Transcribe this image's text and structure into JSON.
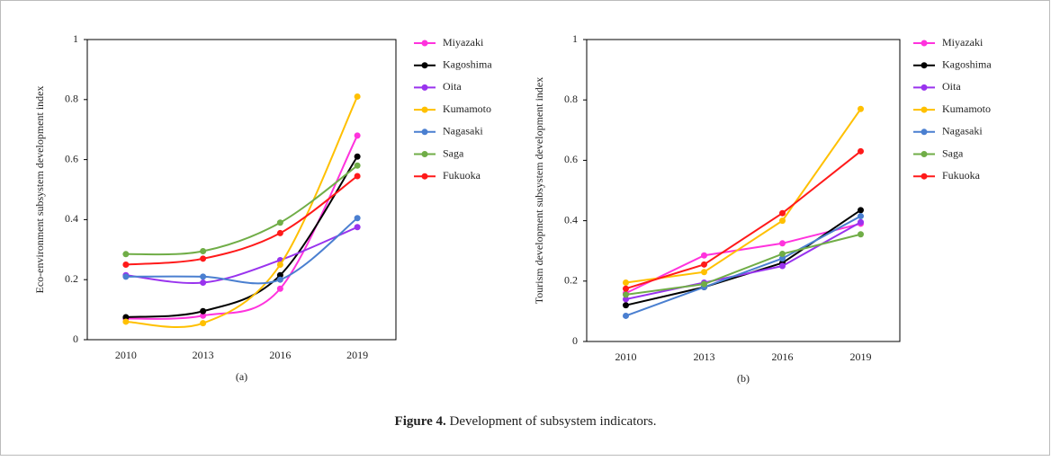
{
  "chart_data": [
    {
      "type": "line",
      "smooth": true,
      "label": "(a)",
      "y_label": "Eco-environment subsystem development index",
      "categories": [
        "2010",
        "2013",
        "2016",
        "2019"
      ],
      "ylim": [
        0,
        1
      ],
      "yticks": [
        0,
        0.2,
        0.4,
        0.6,
        0.8,
        1
      ],
      "series": [
        {
          "name": "Miyazaki",
          "color": "#ff33dd",
          "values": [
            0.07,
            0.08,
            0.17,
            0.68
          ]
        },
        {
          "name": "Kagoshima",
          "color": "#000000",
          "values": [
            0.075,
            0.095,
            0.215,
            0.61
          ]
        },
        {
          "name": "Oita",
          "color": "#9933ee",
          "values": [
            0.215,
            0.19,
            0.265,
            0.375
          ]
        },
        {
          "name": "Kumamoto",
          "color": "#ffc000",
          "values": [
            0.06,
            0.055,
            0.25,
            0.81
          ]
        },
        {
          "name": "Nagasaki",
          "color": "#4a7fd0",
          "values": [
            0.21,
            0.21,
            0.2,
            0.405
          ]
        },
        {
          "name": "Saga",
          "color": "#70ad47",
          "values": [
            0.285,
            0.295,
            0.39,
            0.58
          ]
        },
        {
          "name": "Fukuoka",
          "color": "#ff1a1a",
          "values": [
            0.25,
            0.27,
            0.355,
            0.545
          ]
        }
      ]
    },
    {
      "type": "line",
      "smooth": false,
      "label": "(b)",
      "y_label": "Tourism development subsystem development index",
      "categories": [
        "2010",
        "2013",
        "2016",
        "2019"
      ],
      "ylim": [
        0,
        1
      ],
      "yticks": [
        0,
        0.2,
        0.4,
        0.6,
        0.8,
        1
      ],
      "series": [
        {
          "name": "Miyazaki",
          "color": "#ff33dd",
          "values": [
            0.16,
            0.285,
            0.325,
            0.39
          ]
        },
        {
          "name": "Kagoshima",
          "color": "#000000",
          "values": [
            0.12,
            0.18,
            0.26,
            0.435
          ]
        },
        {
          "name": "Oita",
          "color": "#9933ee",
          "values": [
            0.14,
            0.195,
            0.25,
            0.395
          ]
        },
        {
          "name": "Kumamoto",
          "color": "#ffc000",
          "values": [
            0.195,
            0.23,
            0.4,
            0.77
          ]
        },
        {
          "name": "Nagasaki",
          "color": "#4a7fd0",
          "values": [
            0.085,
            0.18,
            0.275,
            0.415
          ]
        },
        {
          "name": "Saga",
          "color": "#70ad47",
          "values": [
            0.155,
            0.19,
            0.29,
            0.355
          ]
        },
        {
          "name": "Fukuoka",
          "color": "#ff1a1a",
          "values": [
            0.175,
            0.255,
            0.425,
            0.63
          ]
        }
      ]
    }
  ],
  "caption": {
    "label": "Figure 4.",
    "text": "Development of subsystem indicators."
  }
}
